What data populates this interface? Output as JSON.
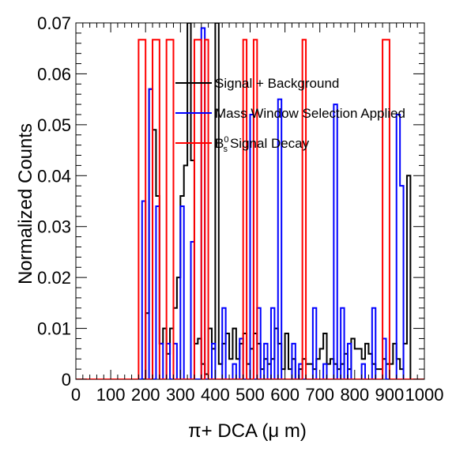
{
  "chart_data": {
    "type": "histogram",
    "xlabel": "π+ DCA (μ m)",
    "ylabel": "Normalized Counts",
    "xlim": [
      0,
      1000
    ],
    "ylim": [
      0,
      0.07
    ],
    "grid": false,
    "legend_position": "top-center",
    "x_ticks": [
      0,
      100,
      200,
      300,
      400,
      500,
      600,
      700,
      800,
      900,
      1000
    ],
    "x_tick_labels": [
      "0",
      "100",
      "200",
      "300",
      "400",
      "500",
      "600",
      "700",
      "800",
      "900",
      "1000"
    ],
    "y_ticks": [
      0,
      0.01,
      0.02,
      0.03,
      0.04,
      0.05,
      0.06,
      0.07
    ],
    "y_tick_labels": [
      "0",
      "0.01",
      "0.02",
      "0.03",
      "0.04",
      "0.05",
      "0.06",
      "0.07"
    ],
    "bin_width": 10,
    "series": [
      {
        "name": "Signal + Background",
        "color": "#000000",
        "bins": [
          [
            200,
            0.013
          ],
          [
            210,
            0.057
          ],
          [
            220,
            0.049
          ],
          [
            230,
            0.036
          ],
          [
            240,
            0.007
          ],
          [
            250,
            0.01
          ],
          [
            260,
            0.005
          ],
          [
            270,
            0.01
          ],
          [
            280,
            0.014
          ],
          [
            290,
            0.02
          ],
          [
            300,
            0.036
          ],
          [
            310,
            0.042
          ],
          [
            320,
            0.075
          ],
          [
            330,
            0.043
          ],
          [
            340,
            0.007
          ],
          [
            350,
            0.008
          ],
          [
            360,
            0.003
          ],
          [
            370,
            0.001
          ],
          [
            380,
            0.01
          ],
          [
            390,
            0.006
          ],
          [
            400,
            0.07
          ],
          [
            410,
            0.003
          ],
          [
            420,
            0.007
          ],
          [
            430,
            0.009
          ],
          [
            440,
            0.004
          ],
          [
            450,
            0.01
          ],
          [
            460,
            0.004
          ],
          [
            470,
            0.007
          ],
          [
            480,
            0.009
          ],
          [
            490,
            0.003
          ],
          [
            500,
            0.006
          ],
          [
            510,
            0.009
          ],
          [
            520,
            0.007
          ],
          [
            530,
            0.002
          ],
          [
            540,
            0.004
          ],
          [
            550,
            0.003
          ],
          [
            560,
            0.004
          ],
          [
            570,
            0.01
          ],
          [
            580,
            0.007
          ],
          [
            590,
            0.002
          ],
          [
            600,
            0.009
          ],
          [
            610,
            0.002
          ],
          [
            620,
            0.004
          ],
          [
            630,
            0.0
          ],
          [
            640,
            0.002
          ],
          [
            650,
            0.004
          ],
          [
            660,
            0.003
          ],
          [
            670,
            0.003
          ],
          [
            680,
            0.002
          ],
          [
            690,
            0.004
          ],
          [
            700,
            0.006
          ],
          [
            710,
            0.009
          ],
          [
            720,
            0.003
          ],
          [
            730,
            0.004
          ],
          [
            740,
            0.003
          ],
          [
            750,
            0.002
          ],
          [
            760,
            0.003
          ],
          [
            770,
            0.005
          ],
          [
            780,
            0.002
          ],
          [
            790,
            0.008
          ],
          [
            800,
            0.006
          ],
          [
            810,
            0.006
          ],
          [
            820,
            0.004
          ],
          [
            830,
            0.007
          ],
          [
            840,
            0.005
          ],
          [
            850,
            0.003
          ],
          [
            860,
            0.002
          ],
          [
            870,
            0.002
          ],
          [
            880,
            0.004
          ],
          [
            890,
            0.003
          ],
          [
            900,
            0.003
          ],
          [
            910,
            0.007
          ],
          [
            920,
            0.004
          ],
          [
            930,
            0.002
          ],
          [
            940,
            0.007
          ],
          [
            950,
            0.04
          ]
        ]
      },
      {
        "name": "Mass Window Selection Applied",
        "color": "#0000ff",
        "bins": [
          [
            190,
            0.035
          ],
          [
            200,
            0.0
          ],
          [
            210,
            0.057
          ],
          [
            220,
            0.0
          ],
          [
            230,
            0.034
          ],
          [
            240,
            0.007
          ],
          [
            250,
            0.0
          ],
          [
            260,
            0.007
          ],
          [
            270,
            0.0
          ],
          [
            280,
            0.007
          ],
          [
            290,
            0.0
          ],
          [
            300,
            0.034
          ],
          [
            310,
            0.0
          ],
          [
            320,
            0.0
          ],
          [
            330,
            0.027
          ],
          [
            340,
            0.0
          ],
          [
            350,
            0.0
          ],
          [
            360,
            0.069
          ],
          [
            370,
            0.0
          ],
          [
            380,
            0.0
          ],
          [
            390,
            0.007
          ],
          [
            400,
            0.0
          ],
          [
            410,
            0.0
          ],
          [
            420,
            0.014
          ],
          [
            430,
            0.0
          ],
          [
            440,
            0.0
          ],
          [
            450,
            0.003
          ],
          [
            460,
            0.0
          ],
          [
            470,
            0.008
          ],
          [
            480,
            0.0
          ],
          [
            490,
            0.0
          ],
          [
            500,
            0.052
          ],
          [
            510,
            0.0
          ],
          [
            520,
            0.014
          ],
          [
            530,
            0.0
          ],
          [
            540,
            0.007
          ],
          [
            550,
            0.0
          ],
          [
            560,
            0.014
          ],
          [
            570,
            0.0
          ],
          [
            580,
            0.055
          ],
          [
            590,
            0.0
          ],
          [
            600,
            0.0
          ],
          [
            610,
            0.0
          ],
          [
            620,
            0.007
          ],
          [
            630,
            0.0
          ],
          [
            640,
            0.003
          ],
          [
            650,
            0.0
          ],
          [
            660,
            0.0
          ],
          [
            670,
            0.0
          ],
          [
            680,
            0.014
          ],
          [
            690,
            0.0
          ],
          [
            700,
            0.0
          ],
          [
            710,
            0.003
          ],
          [
            720,
            0.0
          ],
          [
            730,
            0.0
          ],
          [
            740,
            0.054
          ],
          [
            750,
            0.0
          ],
          [
            760,
            0.014
          ],
          [
            770,
            0.0
          ],
          [
            780,
            0.007
          ],
          [
            790,
            0.0
          ],
          [
            800,
            0.0
          ],
          [
            810,
            0.0
          ],
          [
            820,
            0.003
          ],
          [
            830,
            0.0
          ],
          [
            840,
            0.0
          ],
          [
            850,
            0.014
          ],
          [
            860,
            0.0
          ],
          [
            870,
            0.0
          ],
          [
            880,
            0.008
          ],
          [
            890,
            0.0
          ],
          [
            900,
            0.0
          ],
          [
            910,
            0.0
          ],
          [
            920,
            0.052
          ],
          [
            930,
            0.038
          ]
        ]
      },
      {
        "name": "Signal Decay",
        "name_prefix": "B",
        "name_superscript": "0",
        "name_subscript": "s",
        "color": "#ff0000",
        "bins": [
          [
            180,
            0.0667
          ],
          [
            200,
            0.0
          ],
          [
            220,
            0.0667
          ],
          [
            240,
            0.0
          ],
          [
            260,
            0.0667
          ],
          [
            280,
            0.0
          ],
          [
            340,
            0.0667
          ],
          [
            360,
            0.0
          ],
          [
            370,
            0.0667
          ],
          [
            380,
            0.0
          ],
          [
            480,
            0.0667
          ],
          [
            490,
            0.0
          ],
          [
            510,
            0.0667
          ],
          [
            520,
            0.0
          ],
          [
            580,
            0.0
          ],
          [
            650,
            0.0667
          ],
          [
            660,
            0.0
          ],
          [
            880,
            0.0667
          ],
          [
            900,
            0.0
          ]
        ]
      }
    ]
  }
}
